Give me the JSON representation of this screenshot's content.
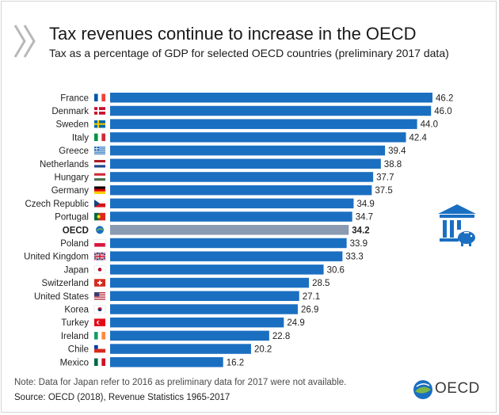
{
  "header": {
    "title": "Tax revenues continue to increase in the OECD",
    "subtitle": "Tax as a percentage of GDP for selected OECD countries (preliminary 2017 data)"
  },
  "footer": {
    "note": "Note: Data for Japan refer to 2016 as preliminary data for 2017 were not available.",
    "source": "Source: OECD (2018), Revenue Statistics 1965-2017",
    "logo_text": "OECD"
  },
  "colors": {
    "bar": "#1b6fc1",
    "highlight_bar": "#8a9ab0"
  },
  "icons": {
    "header": "double-chevron-icon",
    "side": "bank-piggy-icon",
    "logo": "oecd-globe-icon"
  },
  "chart_data": {
    "type": "bar",
    "orientation": "horizontal",
    "title": "Tax revenues continue to increase in the OECD",
    "subtitle": "Tax as a percentage of GDP for selected OECD countries (preliminary 2017 data)",
    "categories": [
      "France",
      "Denmark",
      "Sweden",
      "Italy",
      "Greece",
      "Netherlands",
      "Hungary",
      "Germany",
      "Czech Republic",
      "Portugal",
      "OECD",
      "Poland",
      "United Kingdom",
      "Japan",
      "Switzerland",
      "United States",
      "Korea",
      "Turkey",
      "Ireland",
      "Chile",
      "Mexico"
    ],
    "values": [
      46.2,
      46.0,
      44.0,
      42.4,
      39.4,
      38.8,
      37.7,
      37.5,
      34.9,
      34.7,
      34.2,
      33.9,
      33.3,
      30.6,
      28.5,
      27.1,
      26.9,
      24.9,
      22.8,
      20.2,
      16.2
    ],
    "value_labels": [
      "46.2",
      "46.0",
      "44.0",
      "42.4",
      "39.4",
      "38.8",
      "37.7",
      "37.5",
      "34.9",
      "34.7",
      "34.2",
      "33.9",
      "33.3",
      "30.6",
      "28.5",
      "27.1",
      "26.9",
      "24.9",
      "22.8",
      "20.2",
      "16.2"
    ],
    "highlight": "OECD",
    "xlim": [
      0,
      46.2
    ],
    "grid": false,
    "legend": "none",
    "flags": [
      "flag-france-icon",
      "flag-denmark-icon",
      "flag-sweden-icon",
      "flag-italy-icon",
      "flag-greece-icon",
      "flag-netherlands-icon",
      "flag-hungary-icon",
      "flag-germany-icon",
      "flag-czech-republic-icon",
      "flag-portugal-icon",
      "oecd-globe-icon",
      "flag-poland-icon",
      "flag-united-kingdom-icon",
      "flag-japan-icon",
      "flag-switzerland-icon",
      "flag-united-states-icon",
      "flag-korea-icon",
      "flag-turkey-icon",
      "flag-ireland-icon",
      "flag-chile-icon",
      "flag-mexico-icon"
    ]
  }
}
